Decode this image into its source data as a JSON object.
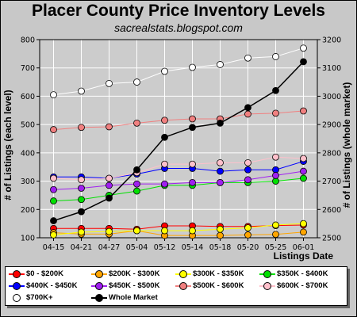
{
  "chart_data": {
    "type": "line",
    "title": "Placer County Price Inventory Levels",
    "subtitle": "sacrealstats.blogspot.com",
    "xlabel": "Listings Date",
    "ylabel": "# of Listings (each level)",
    "y2label": "# of Listings (whole market)",
    "categories": [
      "04-15",
      "04-21",
      "04-27",
      "05-04",
      "05-12",
      "05-14",
      "05-18",
      "05-20",
      "05-25",
      "06-01"
    ],
    "ylim": [
      100,
      800
    ],
    "yticks": [
      100,
      200,
      300,
      400,
      500,
      600,
      700,
      800
    ],
    "y2lim": [
      2500,
      3200
    ],
    "y2ticks": [
      2500,
      2600,
      2700,
      2800,
      2900,
      3000,
      3100,
      3200
    ],
    "grid": true,
    "legend_position": "bottom",
    "series": [
      {
        "name": "$0 - $200K",
        "color": "#ff0000",
        "axis": "left",
        "values": [
          133,
          133,
          133,
          130,
          142,
          142,
          140,
          140,
          143,
          145
        ]
      },
      {
        "name": "$200K - $300K",
        "color": "#ffa500",
        "axis": "left",
        "values": [
          118,
          113,
          113,
          125,
          108,
          108,
          108,
          110,
          112,
          120
        ]
      },
      {
        "name": "$300K - $350K",
        "color": "#ffff00",
        "axis": "left",
        "values": [
          110,
          120,
          122,
          125,
          125,
          125,
          130,
          135,
          145,
          150
        ]
      },
      {
        "name": "$350K - $400K",
        "color": "#00e000",
        "axis": "left",
        "values": [
          230,
          235,
          250,
          265,
          285,
          285,
          295,
          295,
          300,
          310
        ]
      },
      {
        "name": "$400K - $450K",
        "color": "#0000ff",
        "axis": "left",
        "values": [
          315,
          315,
          310,
          325,
          345,
          345,
          335,
          340,
          340,
          370
        ]
      },
      {
        "name": "$450K - $500K",
        "color": "#a020f0",
        "axis": "left",
        "values": [
          270,
          275,
          285,
          290,
          290,
          295,
          295,
          305,
          320,
          335
        ]
      },
      {
        "name": "$500K - $600K",
        "color": "#f08080",
        "axis": "left",
        "values": [
          482,
          490,
          492,
          505,
          515,
          520,
          520,
          537,
          540,
          548
        ]
      },
      {
        "name": "$600K - $700K",
        "color": "#ffc0cb",
        "axis": "left",
        "values": [
          310,
          305,
          310,
          330,
          360,
          360,
          365,
          365,
          385,
          380
        ]
      },
      {
        "name": "$700K+",
        "color": "#ffffff",
        "axis": "left",
        "values": [
          605,
          618,
          645,
          650,
          688,
          702,
          712,
          735,
          740,
          770
        ]
      },
      {
        "name": "Whole Market",
        "color": "#000000",
        "axis": "right",
        "values": [
          2560,
          2592,
          2640,
          2740,
          2855,
          2890,
          2905,
          2960,
          3020,
          3122
        ]
      }
    ]
  },
  "colors": {
    "background": "#c8c8c8",
    "plot_background": "#cccccc",
    "grid": "#ffffff"
  }
}
